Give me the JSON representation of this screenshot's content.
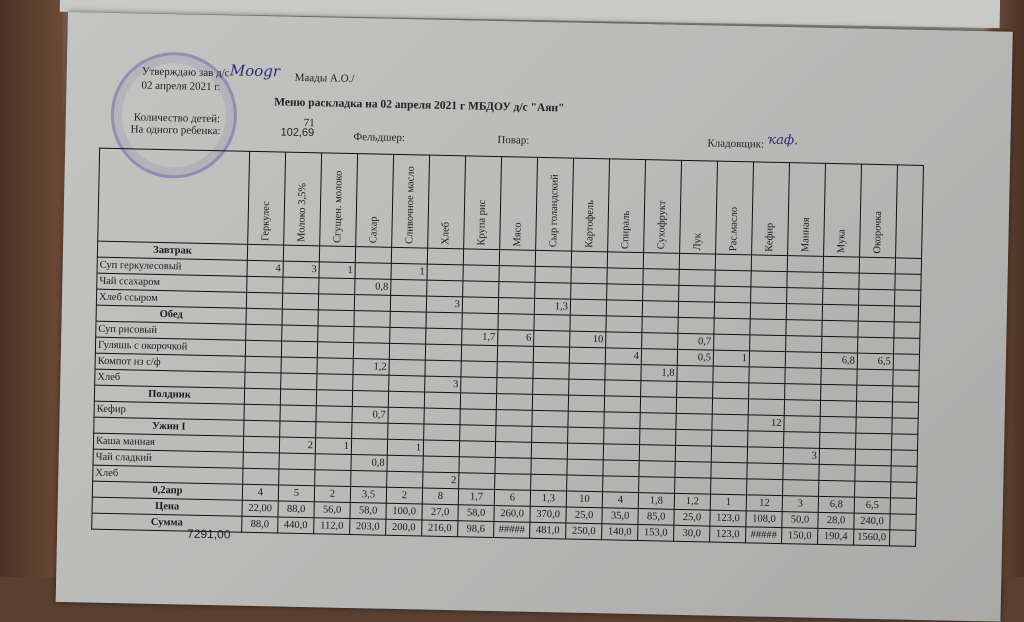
{
  "header": {
    "approve": "Утверждаю зав д/с",
    "approve_date": "02 апреля 2021 г.",
    "signature_name": "Маады А.О./",
    "title": "Меню раскладка на 02 апреля 2021 г МБДОУ д/с \"Аян\"",
    "children_label": "Количество детей:",
    "children_value": "71",
    "per_child_label": "На одного ребенка:",
    "per_child_value": "102,69",
    "medic_label": "Фельдшер:",
    "cook_label": "Повар:",
    "storekeeper_label": "Кладовщик:"
  },
  "columns": [
    "Геркулес",
    "Молоко 3,5%",
    "Сгущен. молоко",
    "Сахар",
    "Сливочное масло",
    "Хлеб",
    "Крупа рис",
    "Мясо",
    "Сыр голандский",
    "Картофель",
    "Спираль",
    "Сухофрукт",
    "Лук",
    "Рас.масло",
    "Кефир",
    "Манная",
    "Мука",
    "Окорочка"
  ],
  "rows": [
    {
      "section": "Завтрак"
    },
    {
      "label": "Суп геркулесовый",
      "cells": [
        "4",
        "3",
        "1",
        "",
        "1",
        "",
        "",
        "",
        "",
        "",
        "",
        "",
        "",
        "",
        "",
        "",
        "",
        ""
      ]
    },
    {
      "label": "Чай ссахаром",
      "cells": [
        "",
        "",
        "",
        "0,8",
        "",
        "",
        "",
        "",
        "",
        "",
        "",
        "",
        "",
        "",
        "",
        "",
        "",
        ""
      ]
    },
    {
      "label": "Хлеб ссыром",
      "cells": [
        "",
        "",
        "",
        "",
        "",
        "3",
        "",
        "",
        "1,3",
        "",
        "",
        "",
        "",
        "",
        "",
        "",
        "",
        ""
      ]
    },
    {
      "section": "Обед"
    },
    {
      "label": "Суп рисовый",
      "cells": [
        "",
        "",
        "",
        "",
        "",
        "",
        "1,7",
        "6",
        "",
        "10",
        "",
        "",
        "0,7",
        "",
        "",
        "",
        "",
        ""
      ]
    },
    {
      "label": "Гуляшь с окорочкой",
      "cells": [
        "",
        "",
        "",
        "",
        "",
        "",
        "",
        "",
        "",
        "",
        "4",
        "",
        "0,5",
        "1",
        "",
        "",
        "6,8",
        "6,5"
      ]
    },
    {
      "label": "Компот из с/ф",
      "cells": [
        "",
        "",
        "",
        "1,2",
        "",
        "",
        "",
        "",
        "",
        "",
        "",
        "1,8",
        "",
        "",
        "",
        "",
        "",
        ""
      ]
    },
    {
      "label": "Хлеб",
      "cells": [
        "",
        "",
        "",
        "",
        "",
        "3",
        "",
        "",
        "",
        "",
        "",
        "",
        "",
        "",
        "",
        "",
        "",
        ""
      ]
    },
    {
      "section": "Полдник"
    },
    {
      "label": "Кефир",
      "cells": [
        "",
        "",
        "",
        "0,7",
        "",
        "",
        "",
        "",
        "",
        "",
        "",
        "",
        "",
        "",
        "12",
        "",
        "",
        ""
      ]
    },
    {
      "section": "Ужин I"
    },
    {
      "label": "Каша манная",
      "cells": [
        "",
        "2",
        "1",
        "",
        "1",
        "",
        "",
        "",
        "",
        "",
        "",
        "",
        "",
        "",
        "",
        "3",
        "",
        ""
      ]
    },
    {
      "label": "Чай сладкий",
      "cells": [
        "",
        "",
        "",
        "0,8",
        "",
        "",
        "",
        "",
        "",
        "",
        "",
        "",
        "",
        "",
        "",
        "",
        "",
        ""
      ]
    },
    {
      "label": "Хлеб",
      "cells": [
        "",
        "",
        "",
        "",
        "",
        "2",
        "",
        "",
        "",
        "",
        "",
        "",
        "",
        "",
        "",
        "",
        "",
        ""
      ]
    }
  ],
  "totals": [
    {
      "label": "0,2апр",
      "cells": [
        "4",
        "5",
        "2",
        "3,5",
        "2",
        "8",
        "1,7",
        "6",
        "1,3",
        "10",
        "4",
        "1,8",
        "1,2",
        "1",
        "12",
        "3",
        "6,8",
        "6,5"
      ]
    },
    {
      "label": "Цена",
      "cells": [
        "22,00",
        "88,0",
        "56,0",
        "58,0",
        "100,0",
        "27,0",
        "58,0",
        "260,0",
        "370,0",
        "25,0",
        "35,0",
        "85,0",
        "25,0",
        "123,0",
        "108,0",
        "50,0",
        "28,0",
        "240,0"
      ]
    },
    {
      "label": "Сумма",
      "cells": [
        "88,0",
        "440,0",
        "112,0",
        "203,0",
        "200,0",
        "216,0",
        "98,6",
        "#####",
        "481,0",
        "250,0",
        "140,0",
        "153,0",
        "30,0",
        "123,0",
        "#####",
        "150,0",
        "190,4",
        "1560,0"
      ]
    }
  ],
  "grand_total": "7291,00"
}
